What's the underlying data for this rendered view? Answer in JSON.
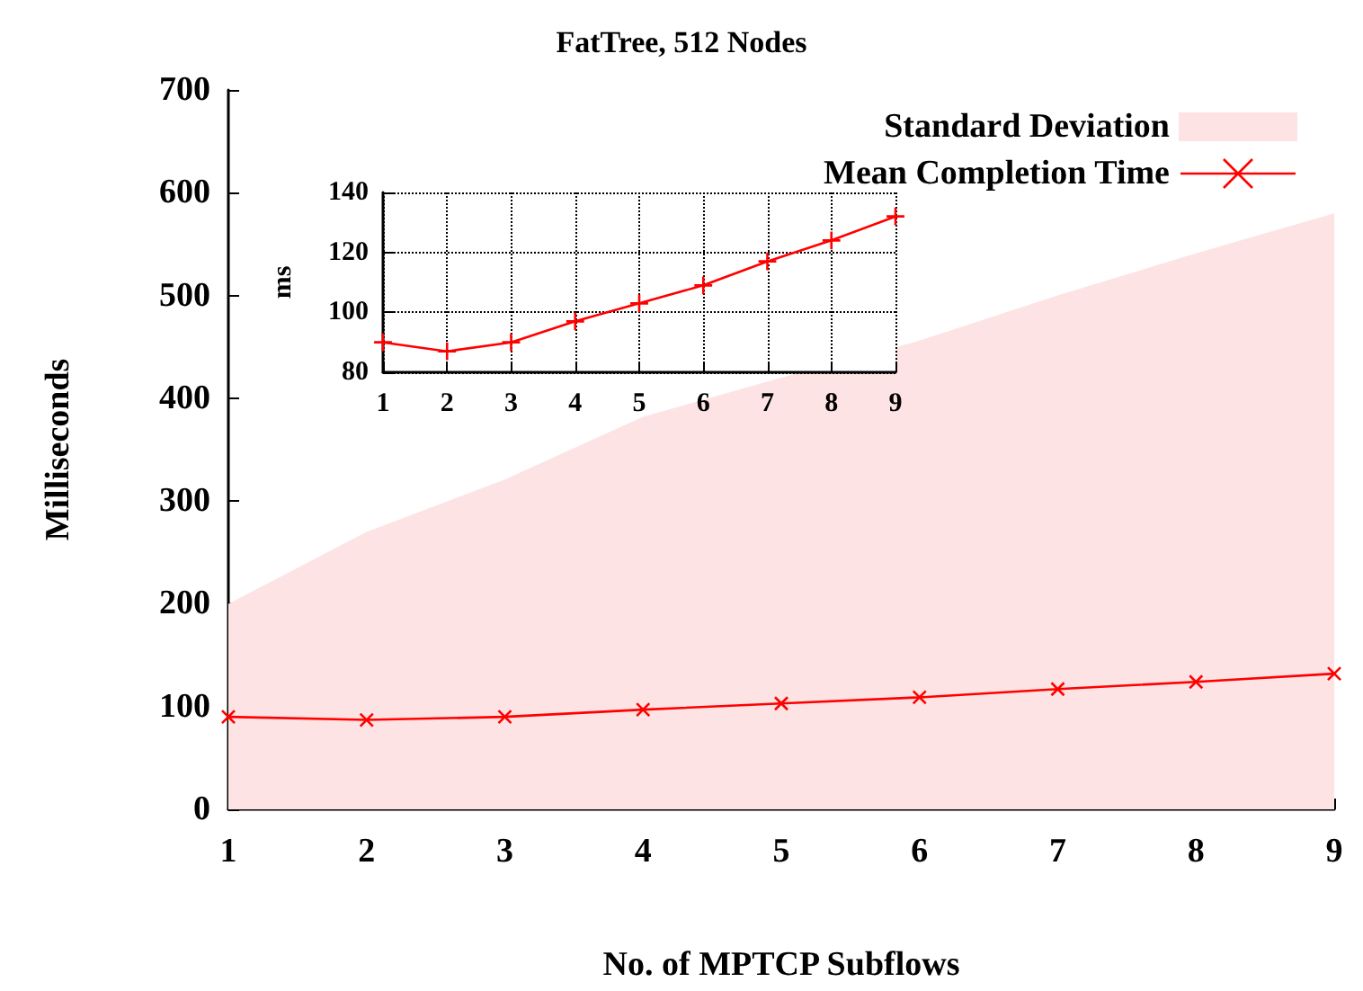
{
  "chart_data": [
    {
      "type": "line",
      "title": "FatTree, 512 Nodes",
      "xlabel": "No. of MPTCP Subflows",
      "ylabel": "Milliseconds",
      "x": [
        1,
        2,
        3,
        4,
        5,
        6,
        7,
        8,
        9
      ],
      "xlim": [
        1,
        9
      ],
      "xticks": [
        1,
        2,
        3,
        4,
        5,
        6,
        7,
        8,
        9
      ],
      "ylim": [
        0,
        700
      ],
      "yticks": [
        0,
        100,
        200,
        300,
        400,
        500,
        600,
        700
      ],
      "grid": false,
      "legend": "top right",
      "line_style": "solid",
      "series": [
        {
          "name": "Standard Deviation",
          "type": "area",
          "color": "#fde3e3",
          "values": [
            200,
            270,
            321,
            382,
            420,
            456,
            500,
            541,
            580
          ]
        },
        {
          "name": "Mean Completion Time",
          "marker": "cross",
          "color": "#ff0000",
          "values": [
            90,
            87,
            90,
            97,
            103,
            109,
            117,
            124,
            132
          ]
        }
      ]
    },
    {
      "type": "line",
      "ylabel": "ms",
      "x": [
        1,
        2,
        3,
        4,
        5,
        6,
        7,
        8,
        9
      ],
      "xlim": [
        1,
        9
      ],
      "xticks": [
        1,
        2,
        3,
        4,
        5,
        6,
        7,
        8,
        9
      ],
      "ylim": [
        80,
        140
      ],
      "yticks": [
        80,
        100,
        120,
        140
      ],
      "grid": true,
      "marker": "cross",
      "line_style": "solid",
      "series": [
        {
          "color": "#ff0000",
          "values": [
            90,
            87,
            90,
            97,
            103,
            109,
            117,
            124,
            132
          ]
        }
      ]
    }
  ]
}
